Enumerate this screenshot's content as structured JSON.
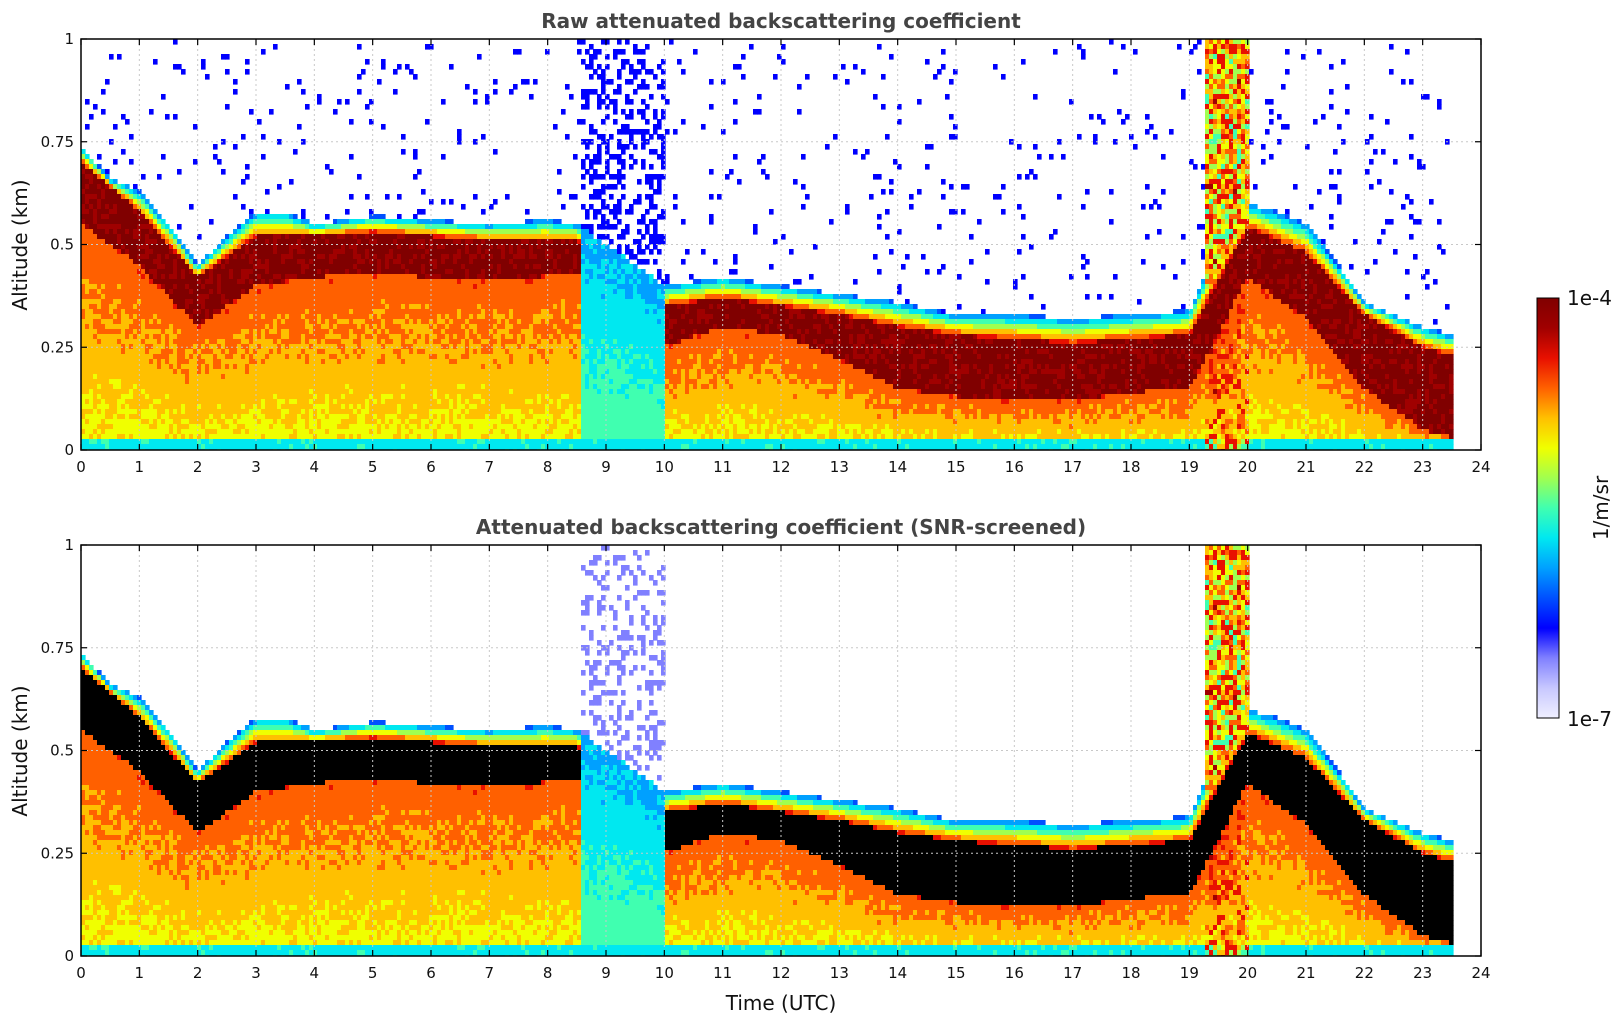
{
  "chart_data": [
    {
      "type": "heatmap",
      "title": "Raw attenuated backscattering coefficient",
      "xlabel": "",
      "ylabel": "Altitude (km)",
      "xlim": [
        0,
        24
      ],
      "ylim": [
        0,
        1
      ],
      "xticks": [
        "0",
        "1",
        "2",
        "3",
        "4",
        "5",
        "6",
        "7",
        "8",
        "9",
        "10",
        "11",
        "12",
        "13",
        "14",
        "15",
        "16",
        "17",
        "18",
        "19",
        "20",
        "21",
        "22",
        "23",
        "24"
      ],
      "yticks": [
        "0",
        "0.25",
        "0.5",
        "0.75",
        "1"
      ],
      "ytick_values": [
        0,
        0.25,
        0.5,
        0.75,
        1
      ],
      "grid": true,
      "data_end_time": 23.55,
      "cloud_top_km": {
        "time": [
          0,
          0.5,
          1,
          1.5,
          2,
          2.5,
          3,
          3.5,
          4,
          4.5,
          5,
          6,
          7,
          8,
          8.5,
          9,
          10,
          11,
          12,
          13,
          14,
          15,
          16,
          17,
          18,
          19,
          19.5,
          20,
          20.5,
          21,
          21.5,
          22,
          23,
          23.5
        ],
        "km": [
          0.74,
          0.66,
          0.63,
          0.55,
          0.45,
          0.52,
          0.58,
          0.58,
          0.55,
          0.56,
          0.57,
          0.56,
          0.55,
          0.56,
          0.55,
          0.5,
          0.4,
          0.42,
          0.4,
          0.38,
          0.36,
          0.33,
          0.33,
          0.32,
          0.33,
          0.34,
          0.5,
          0.6,
          0.58,
          0.55,
          0.46,
          0.36,
          0.3,
          0.28
        ]
      },
      "dense_layer_km": {
        "time": [
          0,
          1,
          2,
          3,
          4,
          5,
          6,
          7,
          8.5,
          10,
          11,
          12,
          13,
          14,
          15,
          16,
          17,
          18,
          19,
          20,
          21,
          22,
          23,
          23.5
        ],
        "top": [
          0.7,
          0.58,
          0.42,
          0.52,
          0.52,
          0.53,
          0.52,
          0.51,
          0.51,
          0.35,
          0.37,
          0.35,
          0.33,
          0.3,
          0.28,
          0.27,
          0.26,
          0.27,
          0.28,
          0.54,
          0.48,
          0.33,
          0.25,
          0.23
        ],
        "base": [
          0.55,
          0.45,
          0.3,
          0.4,
          0.42,
          0.43,
          0.42,
          0.41,
          0.43,
          0.25,
          0.3,
          0.28,
          0.22,
          0.15,
          0.13,
          0.12,
          0.12,
          0.14,
          0.15,
          0.42,
          0.32,
          0.15,
          0.05,
          0.03
        ]
      }
    },
    {
      "type": "heatmap",
      "title": "Attenuated backscattering coefficient (SNR-screened)",
      "xlabel": "Time (UTC)",
      "ylabel": "Altitude (km)",
      "xlim": [
        0,
        24
      ],
      "ylim": [
        0,
        1
      ],
      "xticks": [
        "0",
        "1",
        "2",
        "3",
        "4",
        "5",
        "6",
        "7",
        "8",
        "9",
        "10",
        "11",
        "12",
        "13",
        "14",
        "15",
        "16",
        "17",
        "18",
        "19",
        "20",
        "21",
        "22",
        "23",
        "24"
      ],
      "yticks": [
        "0",
        "0.25",
        "0.5",
        "0.75",
        "1"
      ],
      "ytick_values": [
        0,
        0.25,
        0.5,
        0.75,
        1
      ],
      "grid": true,
      "saturation_color": "#000000"
    }
  ],
  "colorbar": {
    "label": "1/m/sr",
    "max_label": "1e-4",
    "min_label": "1e-7",
    "colormap": [
      "#efefff",
      "#c8c8ff",
      "#8080ff",
      "#0000ff",
      "#0050ff",
      "#00a0ff",
      "#00e8f0",
      "#40ffb0",
      "#a0ff50",
      "#f0ff00",
      "#ffc000",
      "#ff6000",
      "#e81000",
      "#a00000",
      "#800000"
    ]
  },
  "colors": {
    "title": "#444444",
    "grid": "#c8c8c8",
    "frame": "#000000"
  }
}
